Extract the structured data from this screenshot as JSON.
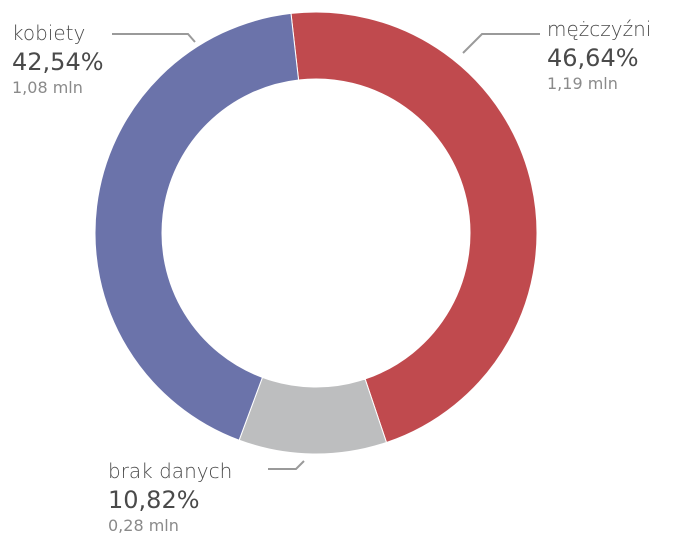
{
  "chart_data": {
    "type": "donut",
    "title": "",
    "series": [
      {
        "name": "mężczyźni",
        "percent": 46.64,
        "percent_label": "46,64%",
        "count_label": "1,19 mln",
        "color": "#c04a4e"
      },
      {
        "name": "brak danych",
        "percent": 10.82,
        "percent_label": "10,82%",
        "count_label": "0,28 mln",
        "color": "#bdbebf"
      },
      {
        "name": "kobiety",
        "percent": 42.54,
        "percent_label": "42,54%",
        "count_label": "1,08 mln",
        "color": "#6b73aa"
      }
    ],
    "start_angle_deg": -6.5,
    "leader_line_color": "#9a9a9a"
  }
}
